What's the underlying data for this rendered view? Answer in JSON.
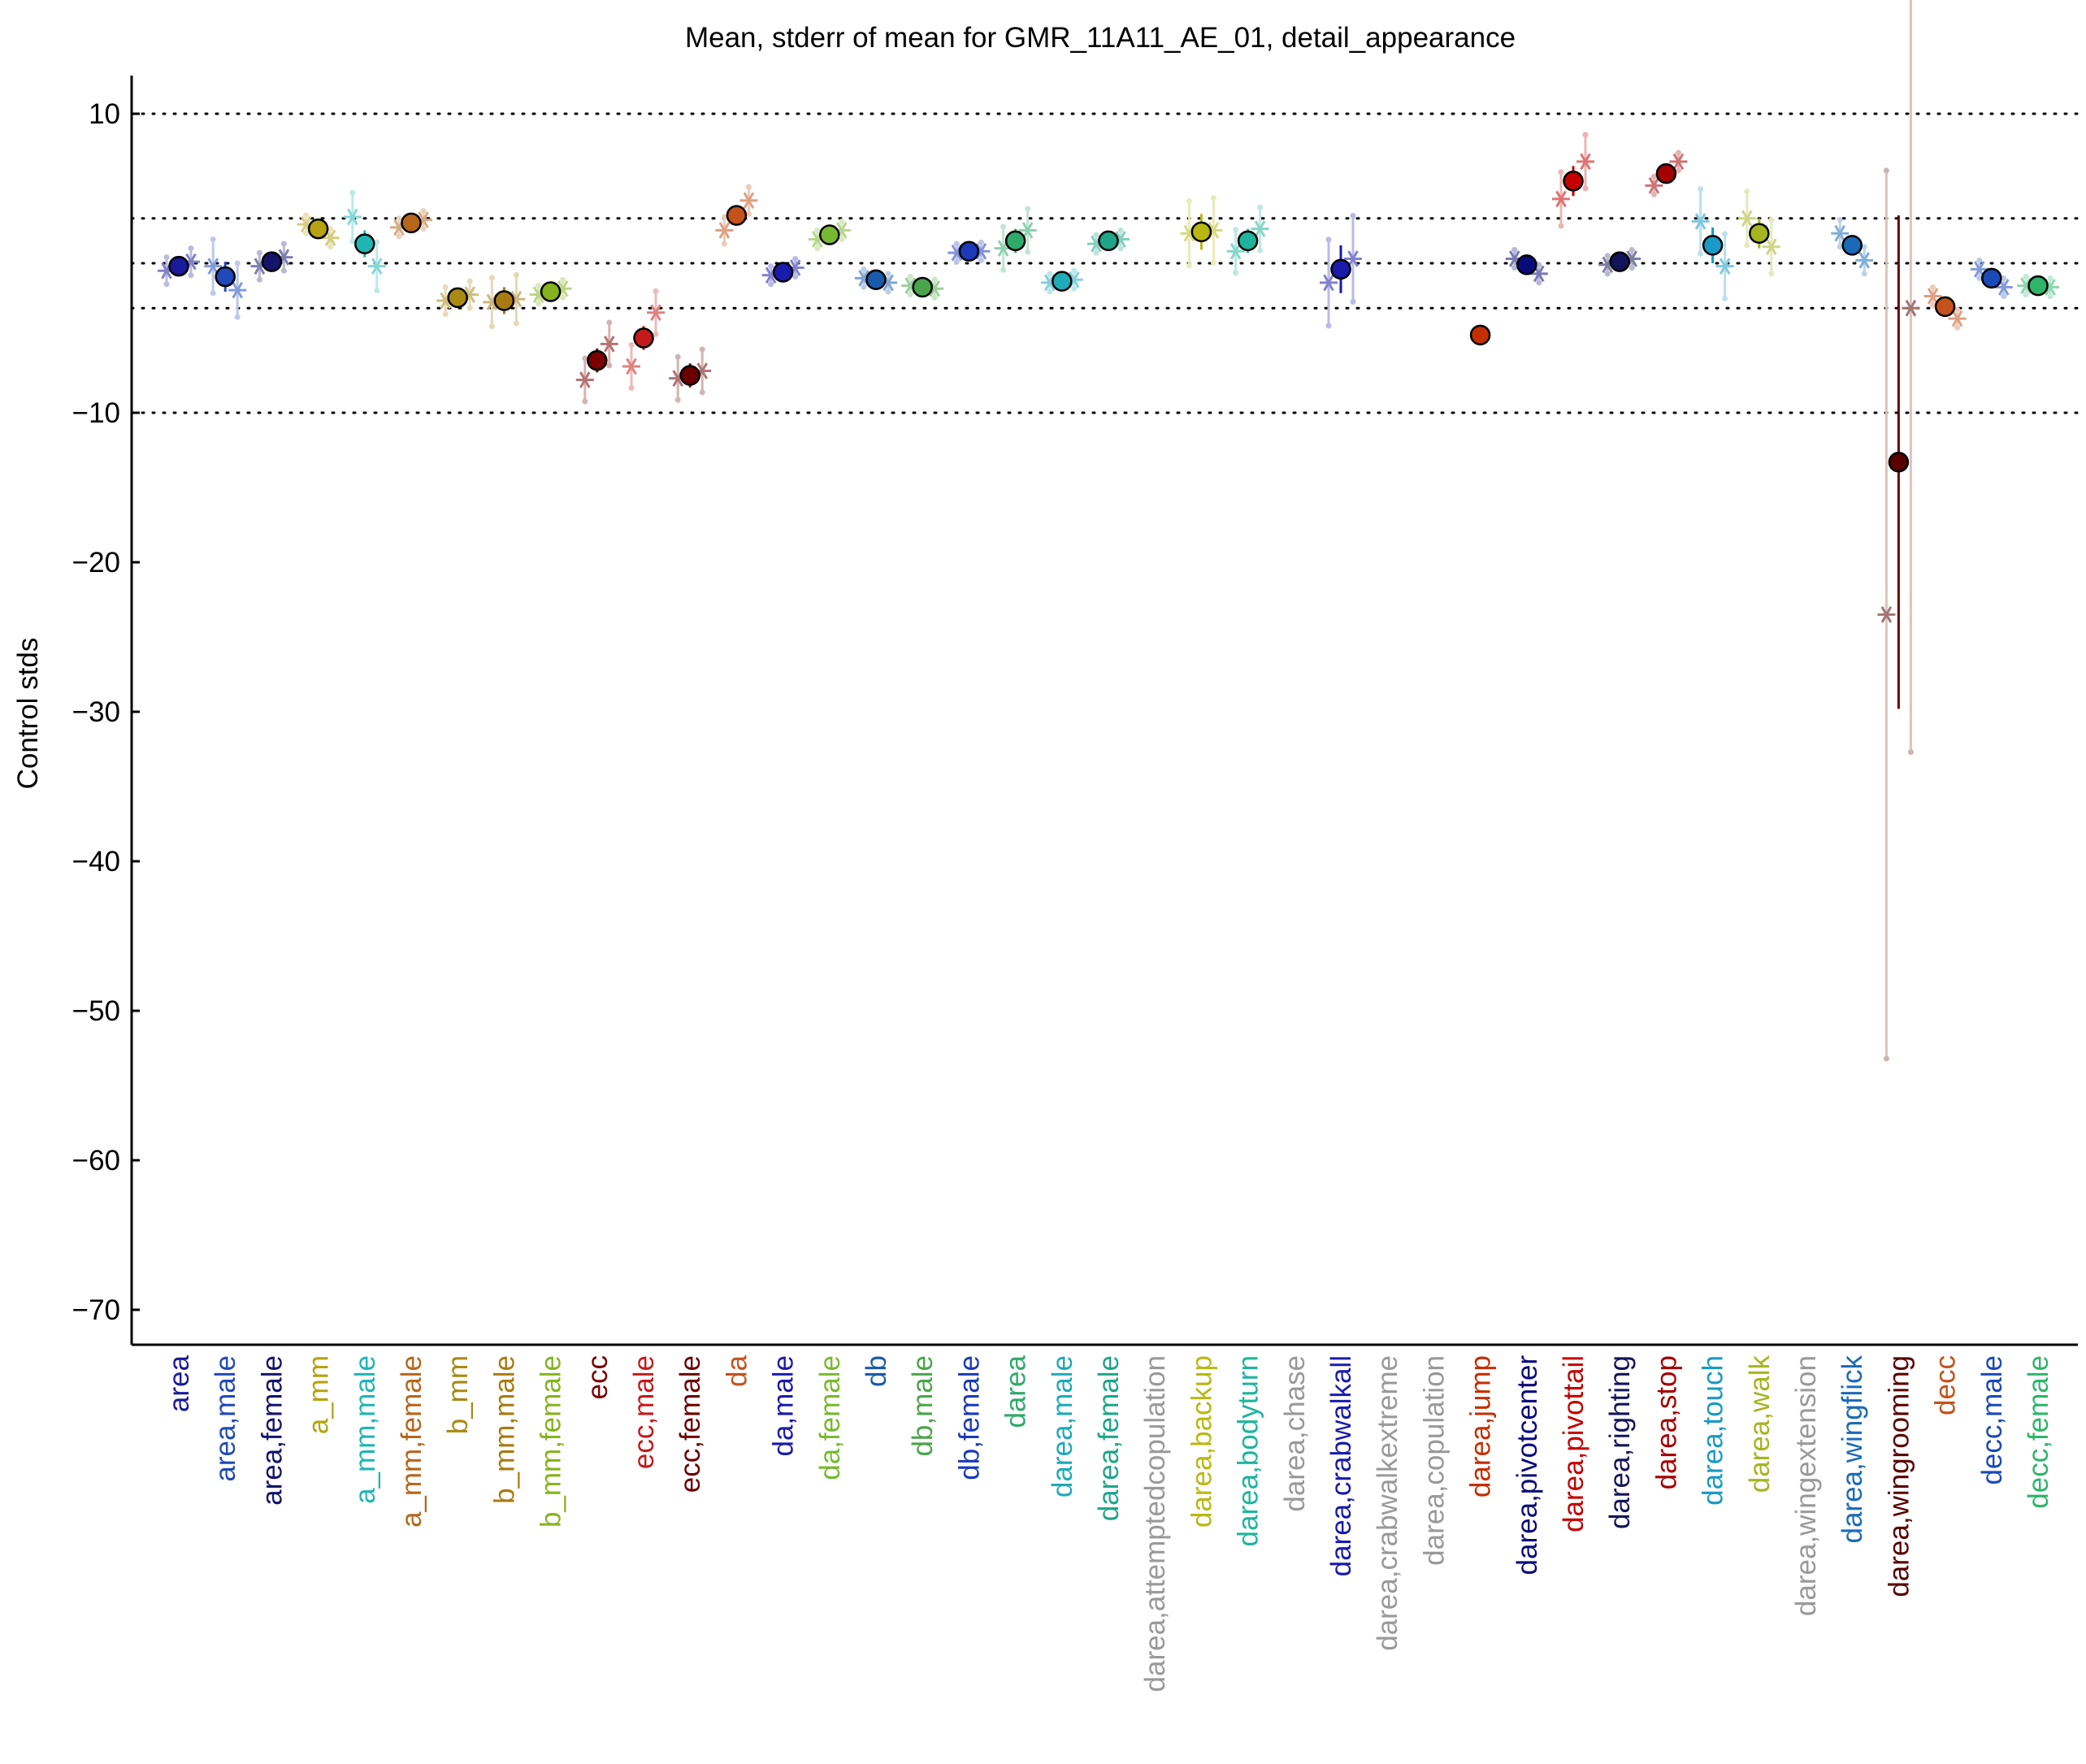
{
  "chart_data": {
    "type": "scatter",
    "title": "Mean, stderr of mean for GMR_11A11_AE_01, detail_appearance",
    "xlabel": "",
    "ylabel": "Control stds",
    "ylim": [
      -72.5,
      12.5
    ],
    "yticks": [
      10,
      -10,
      -20,
      -30,
      -40,
      -50,
      -60,
      -70
    ],
    "ytick_labels": [
      "10",
      "−10",
      "−20",
      "−30",
      "−40",
      "−50",
      "−60",
      "−70"
    ],
    "reference_lines": [
      10,
      3,
      0,
      -3,
      -10
    ],
    "grid": false,
    "colors": {
      "axis": "#000000",
      "reference": "#000000",
      "marker_edge": "#000000",
      "wingrooming_err": "#6b0000",
      "wingrooming_faint": "#dcc2c2"
    },
    "categories": [
      "area",
      "area,male",
      "area,female",
      "a_mm",
      "a_mm,male",
      "a_mm,female",
      "b_mm",
      "b_mm,male",
      "b_mm,female",
      "ecc",
      "ecc,male",
      "ecc,female",
      "da",
      "da,male",
      "da,female",
      "db",
      "db,male",
      "db,female",
      "darea",
      "darea,male",
      "darea,female",
      "darea,attemptedcopulation",
      "darea,backup",
      "darea,bodyturn",
      "darea,chase",
      "darea,crabwalkall",
      "darea,crabwalkextreme",
      "darea,copulation",
      "darea,jump",
      "darea,pivotcenter",
      "darea,pivottail",
      "darea,righting",
      "darea,stop",
      "darea,touch",
      "darea,walk",
      "darea,wingextension",
      "darea,wingflick",
      "darea,wingrooming",
      "decc",
      "decc,male",
      "decc,female"
    ],
    "category_colors": [
      "#1a1a9c",
      "#1f4ab8",
      "#14146b",
      "#b5a312",
      "#1fb5b5",
      "#b5661a",
      "#a88a12",
      "#a87a12",
      "#86b21f",
      "#7a0000",
      "#c41a1a",
      "#6b0000",
      "#c4521a",
      "#1a1aab",
      "#78b82f",
      "#1a5aab",
      "#4aa54a",
      "#1a3ab8",
      "#2faa6b",
      "#1faab8",
      "#1fa58a",
      "#999999",
      "#b8b812",
      "#1fb59c",
      "#999999",
      "#1a1aab",
      "#999999",
      "#999999",
      "#c42f00",
      "#0a0a7a",
      "#c40000",
      "#14145a",
      "#a50000",
      "#1a9ac4",
      "#a5b51f",
      "#999999",
      "#1a6ab8",
      "#5a0000",
      "#c4521a",
      "#1a4ab8",
      "#2fb56b"
    ],
    "means": [
      -0.2,
      -0.9,
      0.1,
      2.3,
      1.3,
      2.7,
      -2.3,
      -2.5,
      -1.9,
      -6.5,
      -5.0,
      -7.5,
      3.2,
      -0.6,
      1.9,
      -1.1,
      -1.6,
      0.8,
      1.5,
      -1.2,
      1.5,
      null,
      2.1,
      1.5,
      null,
      -0.4,
      null,
      null,
      -4.8,
      -0.1,
      5.5,
      0.1,
      6.0,
      1.2,
      2.0,
      null,
      1.2,
      -13.3,
      -2.9,
      -1.0,
      -1.5
    ],
    "stderr": [
      0.5,
      1.0,
      0.5,
      0.3,
      0.9,
      0.3,
      0.5,
      0.9,
      0.3,
      0.8,
      0.8,
      0.8,
      0.5,
      0.2,
      0.3,
      0.3,
      0.2,
      0.3,
      0.8,
      0.3,
      0.3,
      null,
      1.2,
      0.8,
      null,
      1.6,
      null,
      null,
      0.0,
      0.2,
      1.0,
      0.2,
      0.3,
      1.2,
      1.0,
      null,
      0.5,
      16.5,
      0.3,
      0.2,
      0.2
    ],
    "sub_points": [
      [
        -0.5,
        0.1
      ],
      [
        -0.2,
        -1.8
      ],
      [
        -0.2,
        0.4
      ],
      [
        2.6,
        1.7
      ],
      [
        3.1,
        -0.2
      ],
      [
        2.4,
        2.9
      ],
      [
        -2.5,
        -2.1
      ],
      [
        -2.6,
        -2.4
      ],
      [
        -2.1,
        -1.7
      ],
      [
        -7.8,
        -5.4
      ],
      [
        -6.9,
        -3.3
      ],
      [
        -7.7,
        -7.2
      ],
      [
        2.2,
        4.2
      ],
      [
        -0.8,
        -0.3
      ],
      [
        1.6,
        2.2
      ],
      [
        -1.0,
        -1.3
      ],
      [
        -1.5,
        -1.7
      ],
      [
        0.7,
        0.8
      ],
      [
        1.0,
        2.2
      ],
      [
        -1.3,
        -1.1
      ],
      [
        1.3,
        1.6
      ],
      null,
      [
        2.0,
        2.2
      ],
      [
        0.8,
        2.3
      ],
      null,
      [
        -1.3,
        0.3
      ],
      null,
      null,
      null,
      [
        0.3,
        -0.7
      ],
      [
        4.3,
        6.8
      ],
      [
        -0.1,
        0.3
      ],
      [
        5.2,
        6.8
      ],
      [
        2.8,
        -0.2
      ],
      [
        3.0,
        1.1
      ],
      null,
      [
        2.0,
        0.2
      ],
      [
        -23.5,
        -3.0
      ],
      [
        -2.2,
        -3.7
      ],
      [
        -0.4,
        -1.6
      ],
      [
        -1.5,
        -1.6
      ]
    ]
  }
}
